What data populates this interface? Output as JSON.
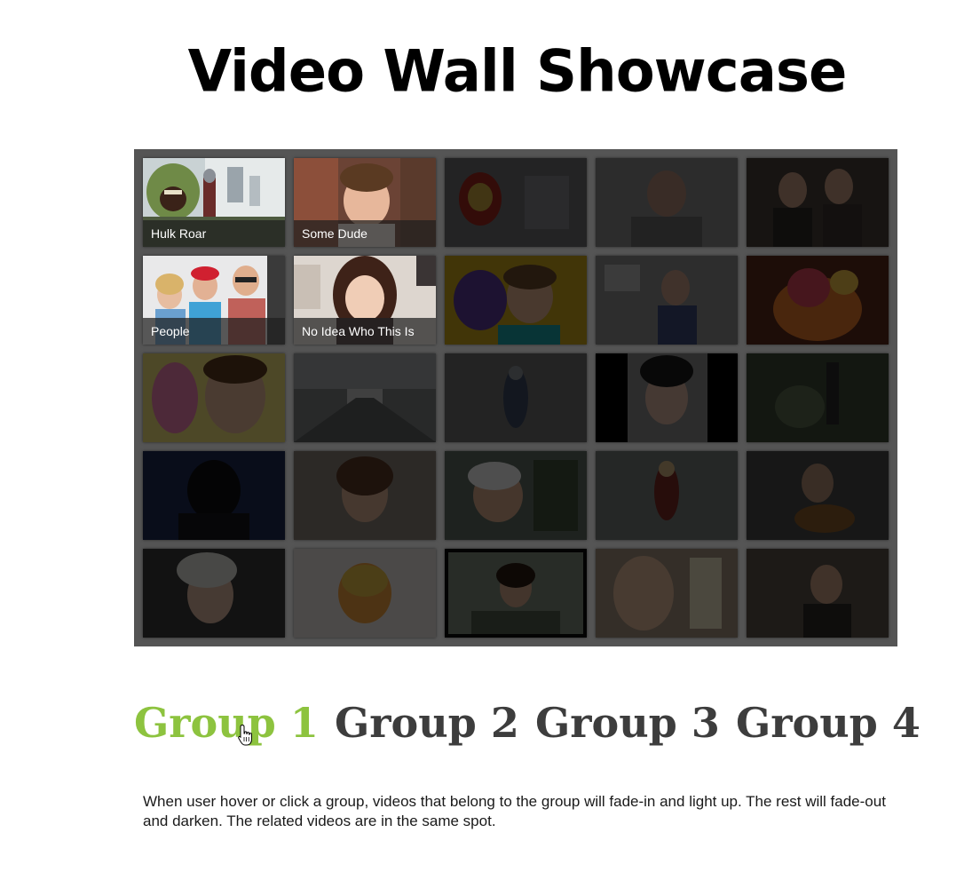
{
  "page": {
    "title": "Video Wall Showcase",
    "description": "When user hover or click a group, videos that belong to the group will fade-in and light up. The rest will fade-out and darken. The related videos are in the same spot."
  },
  "colors": {
    "active_group": "#8dc33f",
    "inactive_group": "#3d3d3d",
    "wall_background": "#555555"
  },
  "wall": {
    "tiles": [
      {
        "label": "Hulk Roar",
        "lit": true
      },
      {
        "label": "Some Dude",
        "lit": true
      },
      {
        "label": "",
        "lit": false
      },
      {
        "label": "",
        "lit": false
      },
      {
        "label": "",
        "lit": false
      },
      {
        "label": "People",
        "lit": true
      },
      {
        "label": "No Idea Who This Is",
        "lit": true
      },
      {
        "label": "",
        "lit": false
      },
      {
        "label": "",
        "lit": false
      },
      {
        "label": "",
        "lit": false
      },
      {
        "label": "",
        "lit": false
      },
      {
        "label": "",
        "lit": false
      },
      {
        "label": "",
        "lit": false
      },
      {
        "label": "",
        "lit": false
      },
      {
        "label": "",
        "lit": false
      },
      {
        "label": "",
        "lit": false
      },
      {
        "label": "",
        "lit": false
      },
      {
        "label": "",
        "lit": false
      },
      {
        "label": "",
        "lit": false
      },
      {
        "label": "",
        "lit": false
      },
      {
        "label": "",
        "lit": false
      },
      {
        "label": "",
        "lit": false
      },
      {
        "label": "",
        "lit": false
      },
      {
        "label": "",
        "lit": false
      },
      {
        "label": "",
        "lit": false
      }
    ]
  },
  "groups": [
    {
      "label": "Group 1",
      "active": true
    },
    {
      "label": "Group 2",
      "active": false
    },
    {
      "label": "Group 3",
      "active": false
    },
    {
      "label": "Group 4",
      "active": false
    }
  ],
  "cursor": {
    "icon": "hand-pointer-icon"
  }
}
